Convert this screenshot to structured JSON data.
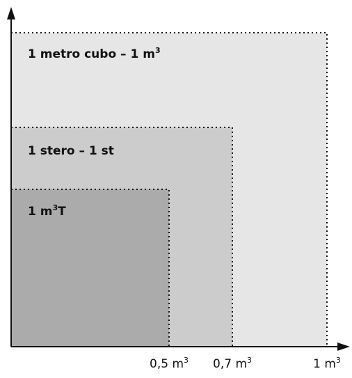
{
  "colors": {
    "region_large": "#e6e6e6",
    "region_medium": "#cccccc",
    "region_small": "#ababab",
    "outline": "#111111",
    "axis": "#111111"
  },
  "regions": {
    "large": {
      "label_main": "1 metro cubo – 1 m",
      "label_sup": "3",
      "value": 1.0
    },
    "medium": {
      "label_main": "1 stero – 1 st",
      "value": 0.7
    },
    "small": {
      "label_main": "1 m",
      "label_sup": "3",
      "label_end": "T",
      "value": 0.5
    }
  },
  "axis": {
    "ticks": [
      {
        "value": 0.5,
        "text": "0,5 m",
        "sup": "3"
      },
      {
        "value": 0.7,
        "text": "0,7 m",
        "sup": "3"
      },
      {
        "value": 1.0,
        "text": "1 m",
        "sup": "3"
      }
    ]
  }
}
